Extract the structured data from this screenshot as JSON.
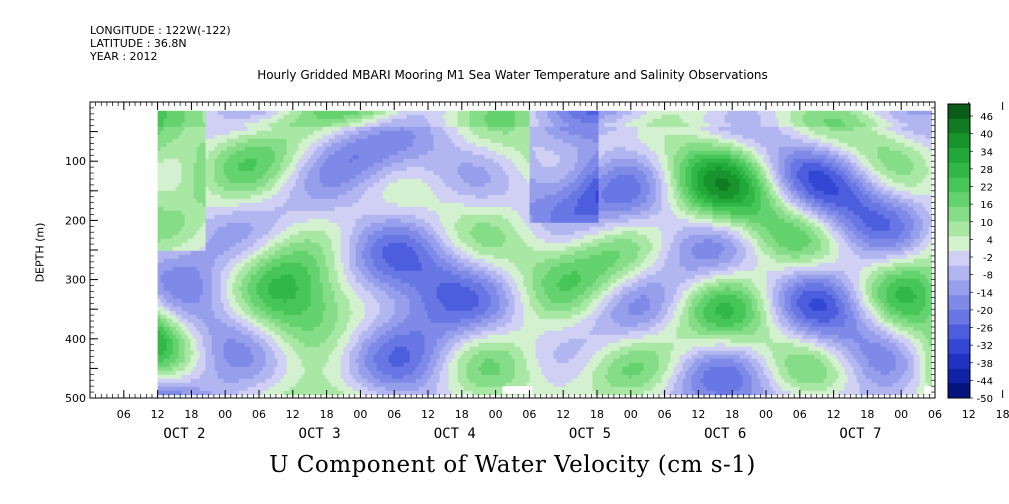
{
  "header": {
    "longitude": "LONGITUDE : 122W(-122)",
    "latitude": "LATITUDE : 36.8N",
    "year": "YEAR : 2012"
  },
  "chart_data": {
    "type": "heatmap",
    "title": "Hourly Gridded MBARI Mooring M1 Sea Water Temperature and Salinity Observations",
    "xlabel": "U Component of Water Velocity (cm s-1)",
    "ylabel": "DEPTH (m)",
    "y_axis": {
      "range": [
        0,
        500
      ],
      "inverted": true,
      "ticks": [
        100,
        200,
        300,
        400,
        500
      ],
      "data_range": [
        20,
        490
      ]
    },
    "x_axis": {
      "hour_ticks": [
        "06",
        "12",
        "18",
        "00",
        "06",
        "12",
        "18",
        "00",
        "06",
        "12",
        "18",
        "00",
        "06",
        "12",
        "18",
        "00",
        "06",
        "12",
        "18",
        "00",
        "06",
        "12",
        "18",
        "00",
        "06",
        "12",
        "18",
        "00"
      ],
      "first_tick_hour_offset": 6,
      "day_labels": [
        "OCT  2",
        "OCT  3",
        "OCT  4",
        "OCT  5",
        "OCT  6",
        "OCT  7"
      ],
      "data_start_hour_offset": 12
    },
    "colorbar": {
      "levels": [
        "46",
        "40",
        "34",
        "28",
        "22",
        "16",
        "10",
        "4",
        "-2",
        "-8",
        "-14",
        "-20",
        "-26",
        "-32",
        "-38",
        "-44",
        "-50"
      ],
      "colors": [
        "#0b5c1a",
        "#117a23",
        "#18942c",
        "#21a838",
        "#32b746",
        "#47c658",
        "#64d26f",
        "#86dd88",
        "#a9e8a4",
        "#d3f0cf",
        "#cfd0f4",
        "#b2b6f0",
        "#979eec",
        "#7f8ae8",
        "#6877e4",
        "#4c5ede",
        "#3346d4",
        "#1f33c2",
        "#1022a6",
        "#05137e"
      ],
      "label_levels": [
        "46",
        "40",
        "34",
        "28",
        "22",
        "16",
        "10",
        "4",
        "-2",
        "-8",
        "-14",
        "-20",
        "-26",
        "-32",
        "-38",
        "-44",
        "-50"
      ]
    },
    "field_description": "U velocity field, values approx -38 to 34 cm/s over 6 days",
    "missing_data": [
      {
        "approx_day_hour": "OCT 4 03-07",
        "depth": 490
      },
      {
        "approx_day_hour": "OCT 7 09-15",
        "depth": 490
      }
    ]
  },
  "colors": {
    "positive": "#47c658",
    "negative": "#979eec",
    "background": "#ffffff",
    "text": "#000000"
  }
}
